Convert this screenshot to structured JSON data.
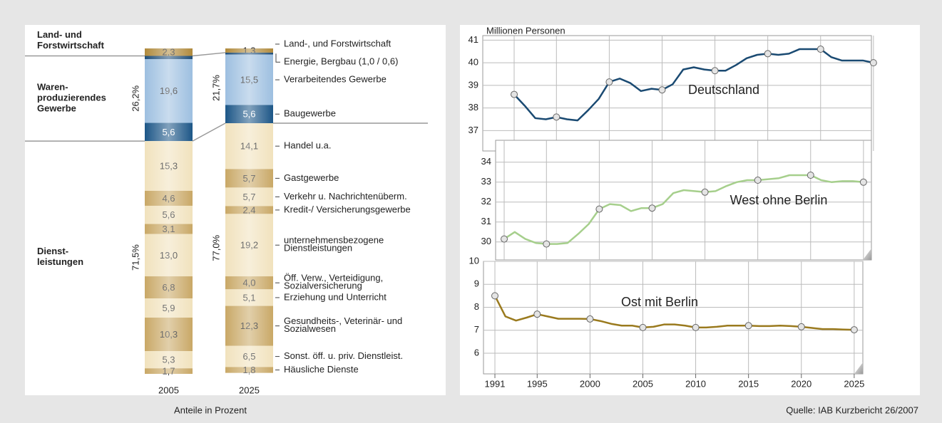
{
  "source": "Quelle: IAB Kurzbericht 26/2007",
  "chart_data": [
    {
      "type": "stacked_bar",
      "categories": [
        "2005",
        "2025"
      ],
      "xlabel": "Anteile in Prozent",
      "groups": [
        {
          "label": "Land- und\nForstwirtschaft",
          "series": [
            {
              "name": "Land-, und Forstwirtschaft",
              "color": "#b08a3c",
              "values": [
                2.3,
                1.3
              ],
              "value_labels": [
                "2,3",
                "1,3"
              ]
            }
          ]
        },
        {
          "label": "Waren-\nproduzierendes\nGewerbe",
          "shares": [
            {
              "value": 26.2,
              "label": "26,2%"
            },
            {
              "value": 21.7,
              "label": "21,7%"
            }
          ],
          "series": [
            {
              "name": "Energie, Bergbau (1,0 / 0,6)",
              "color": "#1f4e79",
              "values": [
                1.0,
                0.6
              ]
            },
            {
              "name": "Verarbeitendes Gewerbe",
              "color": "#9dbfe0",
              "values": [
                19.6,
                15.5
              ],
              "value_labels": [
                "19,6",
                "15,5"
              ]
            },
            {
              "name": "Baugewerbe",
              "color": "#1c5687",
              "values": [
                5.6,
                5.6
              ],
              "value_labels": [
                "5,6",
                "5,6"
              ]
            }
          ]
        },
        {
          "label": "Dienst-\nleistungen",
          "shares": [
            {
              "value": 71.5,
              "label": "71,5%"
            },
            {
              "value": 77.0,
              "label": "77,0%"
            }
          ],
          "series": [
            {
              "name": "Handel u.a.",
              "color": "#f1e2bd",
              "values": [
                15.3,
                14.1
              ],
              "value_labels": [
                "15,3",
                "14,1"
              ]
            },
            {
              "name": "Gastgewerbe",
              "color": "#c9a866",
              "values": [
                4.6,
                5.7
              ],
              "value_labels": [
                "4,6",
                "5,7"
              ]
            },
            {
              "name": "Verkehr u. Nachrichtenüberm.",
              "color": "#f1e2bd",
              "values": [
                5.6,
                5.7
              ],
              "value_labels": [
                "5,6",
                "5,7"
              ]
            },
            {
              "name": "Kredit-/ Versicherungsgewerbe",
              "color": "#c9a866",
              "values": [
                3.1,
                2.4
              ],
              "value_labels": [
                "3,1",
                "2,4"
              ]
            },
            {
              "name": "unternehmensbezogene\nDienstleistungen",
              "color": "#f1e2bd",
              "values": [
                13.0,
                19.2
              ],
              "value_labels": [
                "13,0",
                "19,2"
              ]
            },
            {
              "name": "Öff. Verw., Verteidigung,\nSozialversicherung",
              "color": "#c9a866",
              "values": [
                6.8,
                4.0
              ],
              "value_labels": [
                "6,8",
                "4,0"
              ]
            },
            {
              "name": "Erziehung und Unterricht",
              "color": "#f1e2bd",
              "values": [
                5.9,
                5.1
              ],
              "value_labels": [
                "5,9",
                "5,1"
              ]
            },
            {
              "name": "Gesundheits-, Veterinär- und\nSozialwesen",
              "color": "#c9a866",
              "values": [
                10.3,
                12.3
              ],
              "value_labels": [
                "10,3",
                "12,3"
              ]
            },
            {
              "name": "Sonst. öff. u. priv. Dienstleist.",
              "color": "#f1e2bd",
              "values": [
                5.3,
                6.5
              ],
              "value_labels": [
                "5,3",
                "6,5"
              ]
            },
            {
              "name": "Häusliche Dienste",
              "color": "#c9a866",
              "values": [
                1.7,
                1.8
              ],
              "value_labels": [
                "1,7",
                "1,8"
              ]
            }
          ]
        }
      ]
    },
    {
      "type": "line",
      "ylabel": "Millionen Personen",
      "grid": true,
      "x": [
        1991,
        1992,
        1993,
        1994,
        1995,
        1996,
        1997,
        1998,
        1999,
        2000,
        2001,
        2002,
        2003,
        2004,
        2005,
        2006,
        2007,
        2008,
        2009,
        2010,
        2011,
        2012,
        2013,
        2014,
        2015,
        2016,
        2017,
        2018,
        2019,
        2020,
        2021,
        2022,
        2023,
        2024,
        2025
      ],
      "xlim": [
        1990,
        2027
      ],
      "ylim": [
        36.1,
        41.2
      ],
      "yticks": [
        37,
        38,
        39,
        40,
        41
      ],
      "series": [
        {
          "name": "Deutschland",
          "color": "#1a4a72",
          "values": [
            38.6,
            38.1,
            37.55,
            37.5,
            37.6,
            37.5,
            37.45,
            37.9,
            38.4,
            39.15,
            39.3,
            39.1,
            38.75,
            38.85,
            38.8,
            39.05,
            39.7,
            39.8,
            39.7,
            39.65,
            39.65,
            39.9,
            40.2,
            40.35,
            40.4,
            40.35,
            40.4,
            40.6,
            40.6,
            40.6,
            40.25,
            40.1,
            40.1,
            40.1,
            40.0
          ]
        }
      ]
    },
    {
      "type": "line",
      "grid": true,
      "x": [
        1991,
        1992,
        1993,
        1994,
        1995,
        1996,
        1997,
        1998,
        1999,
        2000,
        2001,
        2002,
        2003,
        2004,
        2005,
        2006,
        2007,
        2008,
        2009,
        2010,
        2011,
        2012,
        2013,
        2014,
        2015,
        2016,
        2017,
        2018,
        2019,
        2020,
        2021,
        2022,
        2023,
        2024,
        2025
      ],
      "xlim": [
        1990,
        2027
      ],
      "ylim": [
        29.1,
        35.1
      ],
      "yticks": [
        30,
        31,
        32,
        33,
        34
      ],
      "series": [
        {
          "name": "West ohne Berlin",
          "color": "#a6cf8c",
          "values": [
            30.15,
            30.5,
            30.15,
            29.95,
            29.9,
            29.9,
            29.95,
            30.4,
            30.9,
            31.65,
            31.9,
            31.85,
            31.55,
            31.7,
            31.7,
            31.9,
            32.45,
            32.6,
            32.55,
            32.5,
            32.55,
            32.8,
            33.0,
            33.1,
            33.1,
            33.15,
            33.2,
            33.35,
            33.35,
            33.35,
            33.1,
            33.0,
            33.05,
            33.05,
            33.0
          ]
        }
      ]
    },
    {
      "type": "line",
      "grid": true,
      "x": [
        1991,
        1992,
        1993,
        1994,
        1995,
        1996,
        1997,
        1998,
        1999,
        2000,
        2001,
        2002,
        2003,
        2004,
        2005,
        2006,
        2007,
        2008,
        2009,
        2010,
        2011,
        2012,
        2013,
        2014,
        2015,
        2016,
        2017,
        2018,
        2019,
        2020,
        2021,
        2022,
        2023,
        2024,
        2025
      ],
      "xlim": [
        1990,
        2027
      ],
      "ylim": [
        5.1,
        10
      ],
      "yticks": [
        6,
        7,
        8,
        9,
        10
      ],
      "xticks": [
        1991,
        1995,
        2000,
        2005,
        2010,
        2015,
        2020,
        2025
      ],
      "series": [
        {
          "name": "Ost mit Berlin",
          "color": "#9a7a1e",
          "values": [
            8.5,
            7.6,
            7.42,
            7.55,
            7.7,
            7.6,
            7.5,
            7.5,
            7.5,
            7.49,
            7.4,
            7.28,
            7.2,
            7.2,
            7.12,
            7.15,
            7.25,
            7.25,
            7.2,
            7.12,
            7.12,
            7.15,
            7.2,
            7.2,
            7.2,
            7.18,
            7.18,
            7.2,
            7.18,
            7.15,
            7.1,
            7.05,
            7.05,
            7.03,
            7.02
          ]
        }
      ]
    }
  ]
}
